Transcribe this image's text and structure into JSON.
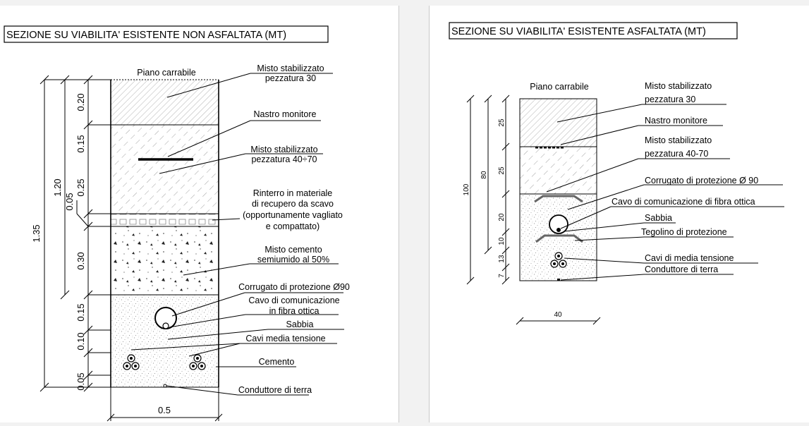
{
  "left": {
    "title": "SEZIONE SU VIABILITA' ESISTENTE NON ASFALTATA (MT)",
    "surface_label": "Piano carrabile",
    "labels": {
      "misto_30_line1": "Misto stabilizzato",
      "misto_30_line2": "pezzatura 30",
      "nastro": "Nastro monitore",
      "misto_4070_line1": "Misto stabilizzato",
      "misto_4070_line2": "pezzatura 40÷70",
      "rinterro_line1": "Rinterro in materiale",
      "rinterro_line2": "di recupero da scavo",
      "rinterro_line3": "(opportunamente vagliato",
      "rinterro_line4": "e compattato)",
      "cemento_line1": "Misto cemento",
      "cemento_line2": "semiumido al 50%",
      "corrugato": "Corrugato di protezione Ø90",
      "cavo_line1": "Cavo di comunicazione",
      "cavo_line2": "in fibra ottica",
      "sabbia": "Sabbia",
      "cavi_mt": "Cavi media tensione",
      "cemento": "Cemento",
      "conduttore": "Conduttore di terra"
    },
    "dims": {
      "total": "1.35",
      "sub": "1.20",
      "d020": "0.20",
      "d015a": "0.15",
      "d025": "0.25",
      "d005a": "0.05",
      "d030": "0.30",
      "d015b": "0.15",
      "d010": "0.10",
      "d005b": "0.05",
      "width": "0.5"
    }
  },
  "right": {
    "title": "SEZIONE SU VIABILITA' ESISTENTE ASFALTATA (MT)",
    "surface_label": "Piano carrabile",
    "labels": {
      "misto_30_line1": "Misto stabilizzato",
      "misto_30_line2": "pezzatura 30",
      "nastro": "Nastro monitore",
      "misto_4070_line1": "Misto stabilizzato",
      "misto_4070_line2": "pezzatura 40-70",
      "corrugato": "Corrugato di protezione Ø 90",
      "cavo": "Cavo di comunicazione di fibra ottica",
      "sabbia": "Sabbia",
      "tegolino": "Tegolino di protezione",
      "cavi_mt": "Cavi di  media  tensione",
      "conduttore": "Conduttore di terra"
    },
    "dims": {
      "total": "100",
      "sub": "80",
      "d25a": "25",
      "d25b": "25",
      "d20": "20",
      "d10": "10",
      "d13": "13",
      "d7": "7",
      "width": "40"
    }
  }
}
